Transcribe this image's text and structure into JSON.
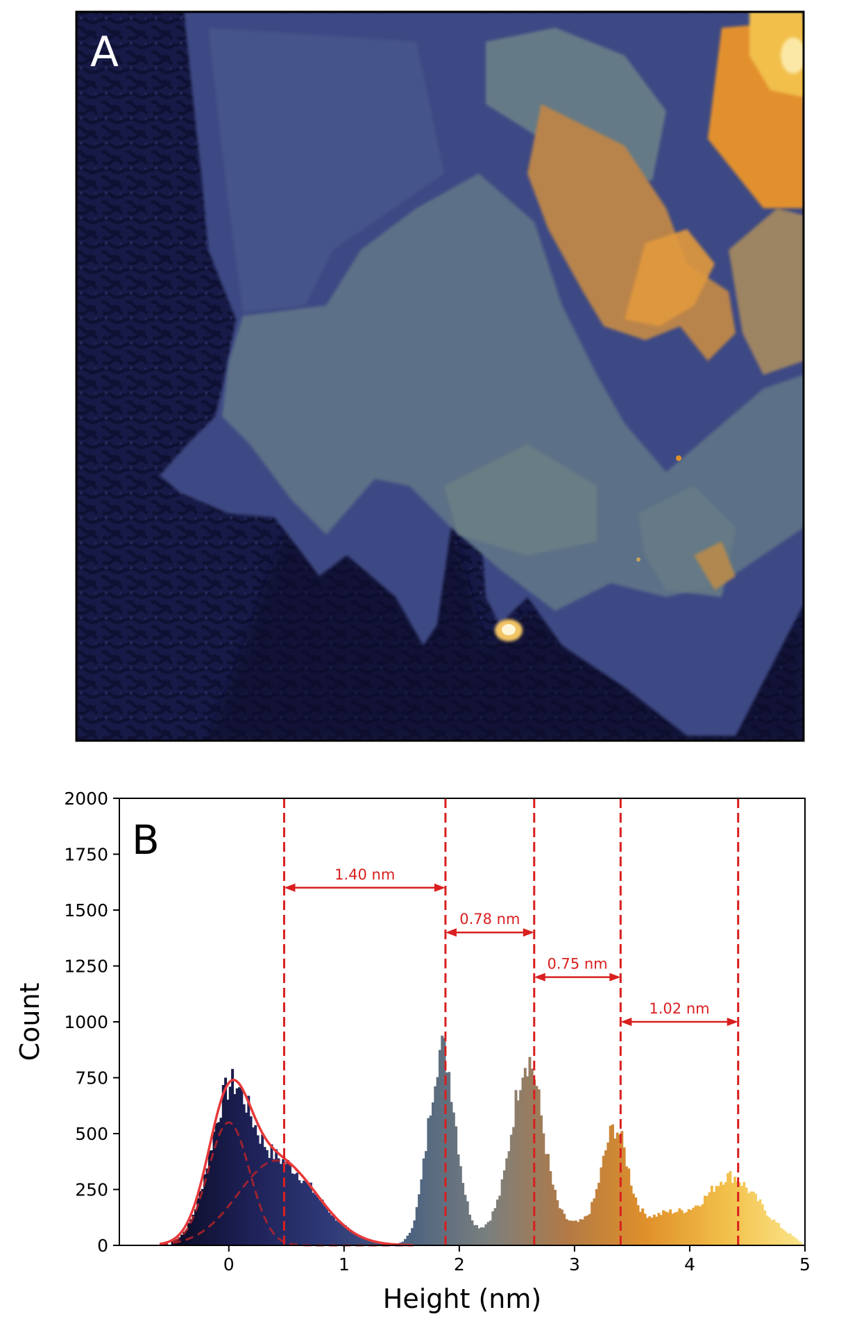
{
  "panel_a": {
    "label": "A"
  },
  "chart_data": {
    "type": "bar",
    "panel_label": "B",
    "xlabel": "Height (nm)",
    "ylabel": "Count",
    "xlim": [
      -0.95,
      5.0
    ],
    "ylim": [
      0,
      2000
    ],
    "xticks": [
      0,
      1,
      2,
      3,
      4,
      5
    ],
    "yticks": [
      0,
      250,
      500,
      750,
      1000,
      1250,
      1500,
      1750,
      2000
    ],
    "grid": false,
    "colormap": [
      "#0b0b25",
      "#1e2157",
      "#2f3a78",
      "#4b6380",
      "#7a7f7e",
      "#b27a46",
      "#e0902a",
      "#f2c04a",
      "#fbe58c"
    ],
    "fit_color": "#e8393a",
    "annotation_color": "#d91f1f",
    "histogram": {
      "bin_width": 0.02,
      "peaks": [
        {
          "center": 0.0,
          "amplitude": 540,
          "sigma": 0.17
        },
        {
          "center": 0.42,
          "amplitude": 370,
          "sigma": 0.34
        },
        {
          "center": 1.85,
          "amplitude": 880,
          "sigma": 0.12
        },
        {
          "center": 2.59,
          "amplitude": 740,
          "sigma": 0.13
        },
        {
          "center": 3.35,
          "amplitude": 430,
          "sigma": 0.11
        },
        {
          "center": 4.35,
          "amplitude": 160,
          "sigma": 0.16
        }
      ],
      "baseline": [
        {
          "from": 2.0,
          "to": 5.0,
          "level": 95
        },
        {
          "from": 3.5,
          "to": 5.0,
          "level": 55
        }
      ]
    },
    "fit": {
      "components": [
        {
          "center": 0.0,
          "amplitude": 550,
          "sigma": 0.18
        },
        {
          "center": 0.42,
          "amplitude": 380,
          "sigma": 0.34
        }
      ],
      "range": [
        -0.6,
        1.6
      ]
    },
    "reference_lines": [
      0.48,
      1.88,
      2.65,
      3.4,
      4.42
    ],
    "measurements": [
      {
        "label": "1.40 nm",
        "from": 0.48,
        "to": 1.88,
        "y": 1600
      },
      {
        "label": "0.78 nm",
        "from": 1.88,
        "to": 2.65,
        "y": 1400
      },
      {
        "label": "0.75 nm",
        "from": 2.65,
        "to": 3.4,
        "y": 1200
      },
      {
        "label": "1.02 nm",
        "from": 3.4,
        "to": 4.42,
        "y": 1000
      }
    ]
  }
}
